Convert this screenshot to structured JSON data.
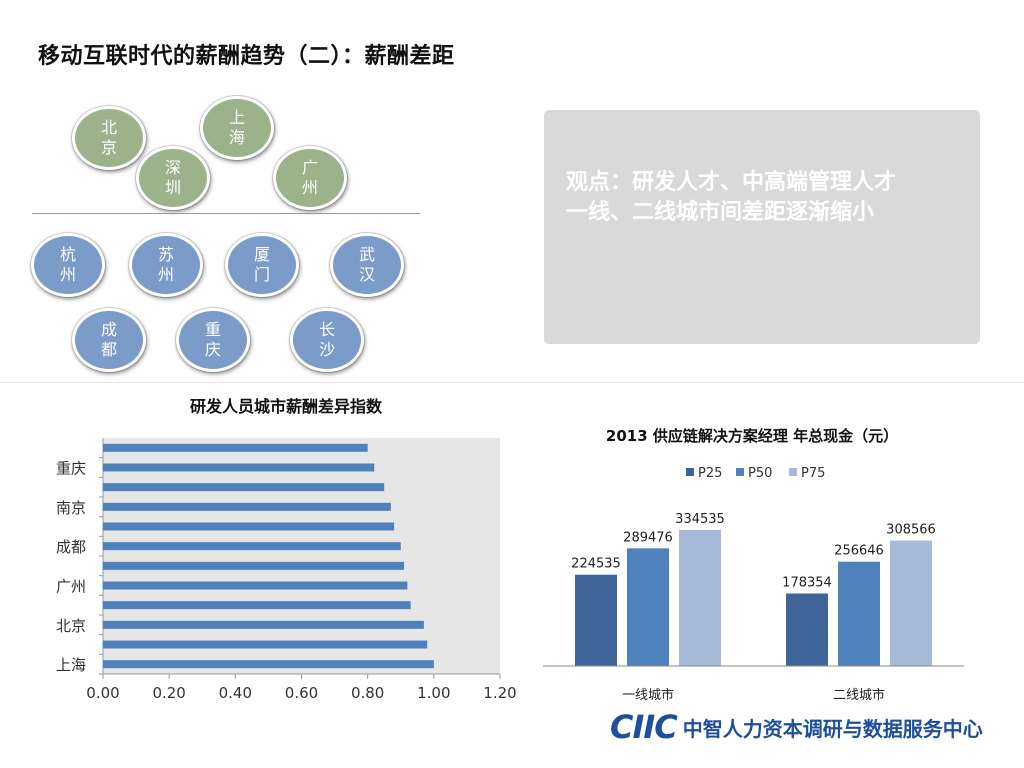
{
  "page": {
    "title": "移动互联时代的薪酬趋势（二）：薪酬差距"
  },
  "cities": {
    "tier1": [
      "北京",
      "上海",
      "深圳",
      "广州"
    ],
    "tier2": [
      "杭州",
      "苏州",
      "厦门",
      "武汉",
      "成都",
      "重庆",
      "长沙"
    ]
  },
  "viewpoint": {
    "text": "观点：研发人才、中高端管理人才\n一线、二线城市间差距逐渐缩小"
  },
  "chart_data": [
    {
      "type": "bar",
      "orientation": "horizontal",
      "title": "研发人员城市薪酬差异指数",
      "categories_bottom_to_top": [
        "",
        "",
        "",
        "",
        "",
        "",
        "",
        "",
        "",
        "",
        "",
        ""
      ],
      "visible_category_labels": [
        "上海",
        "北京",
        "广州",
        "成都",
        "南京",
        "重庆"
      ],
      "values_bottom_to_top": [
        1.0,
        0.98,
        0.97,
        0.93,
        0.92,
        0.91,
        0.9,
        0.88,
        0.87,
        0.85,
        0.82,
        0.8
      ],
      "xlim": [
        0,
        1.2
      ],
      "xticks": [
        "0.00",
        "0.20",
        "0.40",
        "0.60",
        "0.80",
        "1.00",
        "1.20"
      ],
      "bar_color": "#4f81bd",
      "plot_background": "#e6e6e6"
    },
    {
      "type": "bar",
      "title": "2013 供应链解决方案经理 年总现金（元）",
      "categories": [
        "一线城市",
        "二线城市"
      ],
      "series": [
        {
          "name": "P25",
          "values": [
            224535,
            178354
          ],
          "color": "#3e6499"
        },
        {
          "name": "P50",
          "values": [
            289476,
            256646
          ],
          "color": "#4f81bd"
        },
        {
          "name": "P75",
          "values": [
            334535,
            308566
          ],
          "color": "#a8bad9"
        }
      ],
      "legend_position": "top",
      "data_labels": true
    }
  ],
  "logo": {
    "mark": "CIIC",
    "text": "中智人力资本调研与数据服务中心"
  }
}
